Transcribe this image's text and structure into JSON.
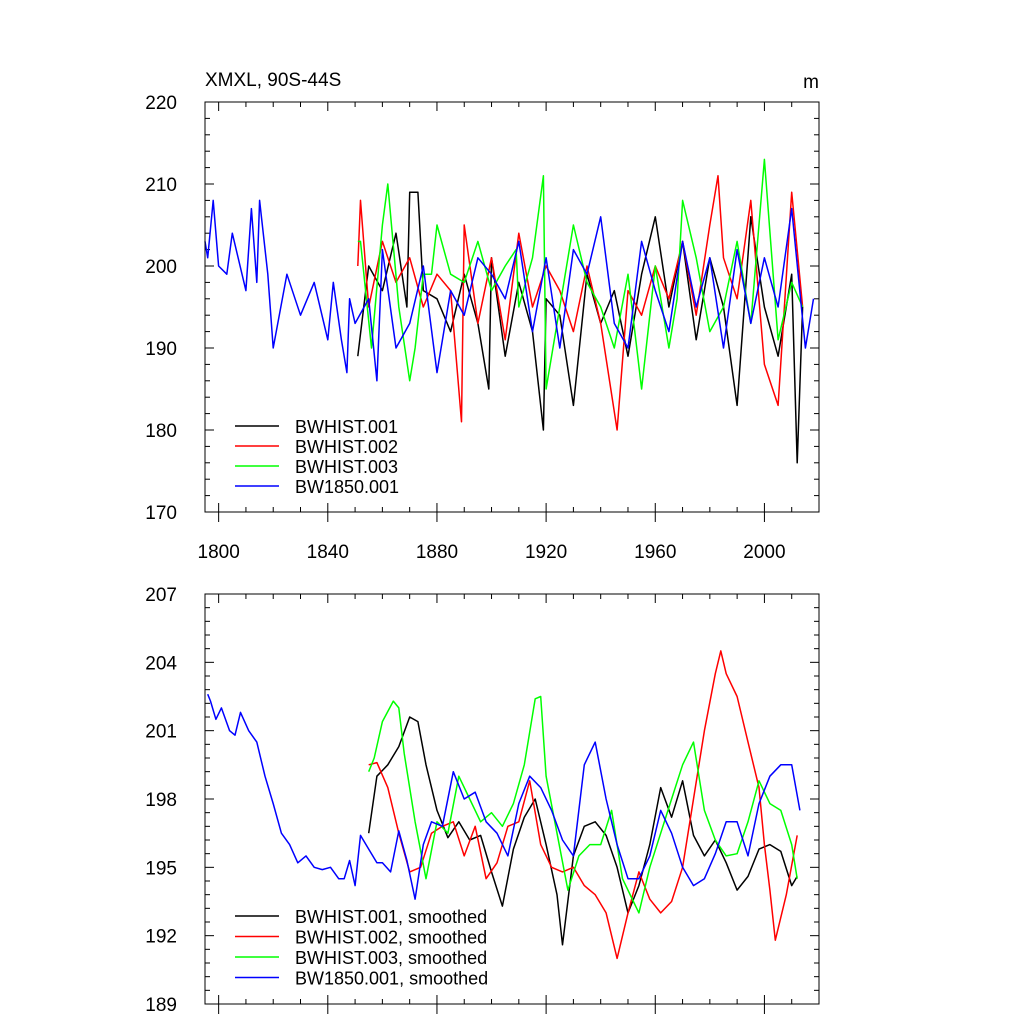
{
  "chart_data": [
    {
      "type": "line",
      "title": "XMXL, 90S-44S",
      "units_label": "m",
      "xlim": [
        1795,
        2020
      ],
      "ylim": [
        170,
        220
      ],
      "xticks": [
        1800,
        1840,
        1880,
        1920,
        1960,
        2000
      ],
      "xtick_labels": [
        "1800",
        "1840",
        "1880",
        "1920",
        "1960",
        "2000"
      ],
      "yticks": [
        170,
        180,
        190,
        200,
        210,
        220
      ],
      "ytick_labels": [
        "170",
        "180",
        "190",
        "200",
        "210",
        "220"
      ],
      "legend_position": "bottom-left",
      "series": [
        {
          "name": "BWHIST.001",
          "color": "#000000",
          "x": [
            1851,
            1855,
            1860,
            1865,
            1869,
            1870,
            1873,
            1875,
            1880,
            1885,
            1890,
            1895,
            1899,
            1900,
            1905,
            1910,
            1915,
            1919,
            1920,
            1925,
            1930,
            1935,
            1940,
            1945,
            1950,
            1955,
            1960,
            1965,
            1970,
            1975,
            1980,
            1985,
            1990,
            1995,
            2000,
            2005,
            2010,
            2012,
            2014
          ],
          "values": [
            189,
            200,
            197,
            204,
            195,
            209,
            209,
            197,
            196,
            192,
            199,
            193,
            185,
            201,
            189,
            198,
            192,
            180,
            196,
            194,
            183,
            199,
            193,
            197,
            189,
            199,
            206,
            195,
            203,
            191,
            201,
            195,
            183,
            206,
            195,
            189,
            199,
            176,
            195
          ]
        },
        {
          "name": "BWHIST.002",
          "color": "#ff0000",
          "x": [
            1851,
            1852,
            1855,
            1860,
            1865,
            1870,
            1875,
            1880,
            1885,
            1889,
            1890,
            1895,
            1900,
            1905,
            1910,
            1915,
            1920,
            1925,
            1930,
            1935,
            1940,
            1946,
            1950,
            1955,
            1960,
            1965,
            1970,
            1975,
            1980,
            1983,
            1985,
            1990,
            1995,
            2000,
            2005,
            2010,
            2014
          ],
          "values": [
            200,
            208,
            195,
            203,
            198,
            201,
            195,
            199,
            197,
            181,
            205,
            193,
            201,
            191,
            204,
            195,
            200,
            197,
            192,
            200,
            193,
            180,
            197,
            194,
            200,
            196,
            203,
            194,
            205,
            211,
            201,
            196,
            208,
            188,
            183,
            209,
            195
          ]
        },
        {
          "name": "BWHIST.003",
          "color": "#00ff00",
          "x": [
            1851,
            1852,
            1856,
            1860,
            1862,
            1866,
            1870,
            1872,
            1875,
            1878,
            1880,
            1885,
            1890,
            1895,
            1900,
            1905,
            1909,
            1910,
            1915,
            1919,
            1920,
            1925,
            1930,
            1935,
            1940,
            1945,
            1950,
            1955,
            1960,
            1965,
            1968,
            1970,
            1975,
            1980,
            1985,
            1990,
            1995,
            2000,
            2005,
            2010,
            2014
          ],
          "values": [
            203,
            203,
            190,
            205,
            210,
            195,
            186,
            190,
            199,
            199,
            205,
            199,
            198,
            203,
            197,
            200,
            202,
            195,
            201,
            211,
            185,
            195,
            205,
            198,
            195,
            190,
            199,
            185,
            200,
            190,
            196,
            208,
            201,
            192,
            195,
            203,
            193,
            213,
            191,
            198,
            195
          ]
        },
        {
          "name": "BW1850.001",
          "color": "#0000ff",
          "x": [
            1795,
            1796,
            1798,
            1800,
            1803,
            1805,
            1810,
            1812,
            1814,
            1815,
            1818,
            1820,
            1825,
            1830,
            1835,
            1840,
            1842,
            1845,
            1847,
            1848,
            1850,
            1855,
            1858,
            1860,
            1865,
            1870,
            1875,
            1880,
            1885,
            1890,
            1895,
            1900,
            1905,
            1910,
            1915,
            1920,
            1925,
            1930,
            1935,
            1940,
            1945,
            1950,
            1955,
            1960,
            1965,
            1970,
            1975,
            1980,
            1985,
            1990,
            1995,
            2000,
            2005,
            2010,
            2015,
            2018
          ],
          "values": [
            203,
            201,
            208,
            200,
            199,
            204,
            197,
            207,
            198,
            208,
            199,
            190,
            199,
            194,
            198,
            191,
            198,
            191,
            187,
            196,
            193,
            196,
            186,
            202,
            190,
            193,
            200,
            187,
            197,
            194,
            201,
            199,
            196,
            203,
            192,
            201,
            190,
            202,
            199,
            206,
            193,
            190,
            203,
            197,
            192,
            203,
            195,
            201,
            190,
            202,
            193,
            201,
            195,
            207,
            190,
            196
          ]
        }
      ]
    },
    {
      "type": "line",
      "xlim": [
        1795,
        2020
      ],
      "ylim": [
        189,
        207
      ],
      "xticks": [
        1800,
        1840,
        1880,
        1920,
        1960,
        2000
      ],
      "yticks": [
        189,
        192,
        195,
        198,
        201,
        204,
        207
      ],
      "ytick_labels": [
        "189",
        "192",
        "195",
        "198",
        "201",
        "204",
        "207"
      ],
      "legend_position": "bottom-left",
      "series": [
        {
          "name": "BWHIST.001, smoothed",
          "color": "#000000",
          "x": [
            1855,
            1858,
            1862,
            1866,
            1870,
            1873,
            1876,
            1880,
            1884,
            1888,
            1892,
            1896,
            1900,
            1904,
            1908,
            1912,
            1916,
            1920,
            1924,
            1926,
            1930,
            1934,
            1938,
            1942,
            1946,
            1950,
            1954,
            1958,
            1962,
            1966,
            1970,
            1974,
            1978,
            1982,
            1986,
            1990,
            1994,
            1998,
            2002,
            2006,
            2010,
            2012
          ],
          "values": [
            196.5,
            199.0,
            199.5,
            200.3,
            201.6,
            201.4,
            199.5,
            197.5,
            196.3,
            197.0,
            196.2,
            196.4,
            194.8,
            193.3,
            195.8,
            197.2,
            198.0,
            196.0,
            193.8,
            191.6,
            195.5,
            196.8,
            197.0,
            196.4,
            195.0,
            193.0,
            194.2,
            196.0,
            198.5,
            197.2,
            198.8,
            196.4,
            195.5,
            196.2,
            195.2,
            194.0,
            194.6,
            195.8,
            196.0,
            195.7,
            194.2,
            194.6
          ]
        },
        {
          "name": "BWHIST.002, smoothed",
          "color": "#ff0000",
          "x": [
            1855,
            1858,
            1862,
            1866,
            1870,
            1874,
            1878,
            1882,
            1886,
            1890,
            1894,
            1898,
            1902,
            1906,
            1910,
            1914,
            1918,
            1922,
            1926,
            1930,
            1934,
            1938,
            1942,
            1946,
            1950,
            1954,
            1958,
            1962,
            1966,
            1970,
            1974,
            1978,
            1982,
            1984,
            1986,
            1990,
            1994,
            1998,
            2000,
            2002,
            2004,
            2008,
            2012
          ],
          "values": [
            199.5,
            199.6,
            198.5,
            196.5,
            194.8,
            195.0,
            196.5,
            196.8,
            197.0,
            195.5,
            196.8,
            194.5,
            195.2,
            196.8,
            197.0,
            198.8,
            196.0,
            195.0,
            194.8,
            195.0,
            194.2,
            193.8,
            193.0,
            191.0,
            193.0,
            194.8,
            193.6,
            193.0,
            193.5,
            195.0,
            198.0,
            201.0,
            203.5,
            204.5,
            203.5,
            202.5,
            200.5,
            198.5,
            196.0,
            194.0,
            191.8,
            193.8,
            196.4
          ]
        },
        {
          "name": "BWHIST.003, smoothed",
          "color": "#00ff00",
          "x": [
            1855,
            1857,
            1860,
            1864,
            1866,
            1868,
            1872,
            1876,
            1880,
            1884,
            1888,
            1892,
            1896,
            1900,
            1904,
            1908,
            1912,
            1916,
            1918,
            1920,
            1924,
            1928,
            1932,
            1936,
            1940,
            1944,
            1948,
            1952,
            1954,
            1958,
            1962,
            1966,
            1970,
            1974,
            1978,
            1982,
            1986,
            1990,
            1994,
            1998,
            2002,
            2006,
            2010,
            2012
          ],
          "values": [
            199.2,
            199.8,
            201.4,
            202.3,
            202.0,
            200.0,
            197.0,
            194.5,
            197.0,
            196.5,
            199.0,
            198.0,
            197.0,
            197.4,
            196.8,
            197.8,
            199.5,
            202.4,
            202.5,
            199.0,
            196.5,
            194.0,
            195.5,
            196.0,
            196.0,
            197.5,
            194.5,
            193.5,
            193.0,
            195.0,
            196.5,
            198.0,
            199.5,
            200.5,
            197.5,
            196.2,
            195.5,
            195.6,
            197.0,
            198.8,
            197.8,
            197.5,
            196.0,
            194.5
          ]
        },
        {
          "name": "BW1850.001, smoothed",
          "color": "#0000ff",
          "x": [
            1796,
            1797,
            1799,
            1801,
            1804,
            1806,
            1808,
            1811,
            1814,
            1817,
            1820,
            1823,
            1826,
            1829,
            1832,
            1835,
            1838,
            1841,
            1844,
            1846,
            1848,
            1850,
            1852,
            1855,
            1858,
            1860,
            1863,
            1866,
            1869,
            1872,
            1875,
            1878,
            1882,
            1886,
            1890,
            1894,
            1898,
            1902,
            1906,
            1910,
            1914,
            1918,
            1922,
            1926,
            1930,
            1934,
            1938,
            1942,
            1946,
            1950,
            1954,
            1958,
            1962,
            1966,
            1970,
            1974,
            1978,
            1982,
            1986,
            1990,
            1994,
            1998,
            2002,
            2006,
            2010,
            2013
          ],
          "values": [
            202.6,
            202.3,
            201.5,
            202.0,
            201.0,
            200.8,
            201.8,
            201.0,
            200.5,
            199.0,
            197.8,
            196.5,
            196.0,
            195.2,
            195.5,
            195.0,
            194.9,
            195.0,
            194.5,
            194.5,
            195.3,
            194.2,
            196.4,
            195.8,
            195.2,
            195.2,
            194.8,
            196.6,
            195.3,
            193.6,
            196.0,
            197.0,
            196.8,
            199.2,
            198.0,
            198.3,
            197.0,
            196.5,
            195.5,
            197.8,
            199.0,
            198.5,
            197.5,
            196.2,
            195.5,
            199.5,
            200.5,
            198.0,
            196.0,
            194.5,
            194.5,
            195.5,
            197.5,
            196.5,
            195.0,
            194.2,
            194.5,
            195.6,
            197.0,
            197.0,
            195.5,
            197.8,
            199.0,
            199.5,
            199.5,
            197.5
          ]
        }
      ]
    }
  ]
}
